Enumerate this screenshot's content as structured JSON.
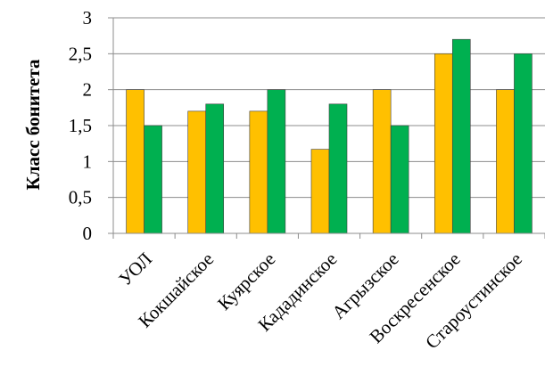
{
  "chart_data": {
    "type": "bar",
    "ylabel": "Класс бонитета",
    "xlabel": "",
    "categories": [
      "УОЛ",
      "Кокшайское",
      "Куярское",
      "Кададинское",
      "Агрызское",
      "Воскресенское",
      "Староустинское"
    ],
    "series": [
      {
        "values": [
          2.0,
          1.7,
          1.7,
          1.17,
          2.0,
          2.5,
          2.0
        ],
        "color": "#FFC000"
      },
      {
        "values": [
          1.5,
          1.8,
          2.0,
          1.8,
          1.5,
          2.7,
          2.5
        ],
        "color": "#00B050"
      }
    ],
    "yticks": [
      "0",
      "0,5",
      "1",
      "1,5",
      "2",
      "2,5",
      "3"
    ],
    "ylim": [
      0,
      3
    ],
    "grid": true,
    "legend": "none"
  }
}
